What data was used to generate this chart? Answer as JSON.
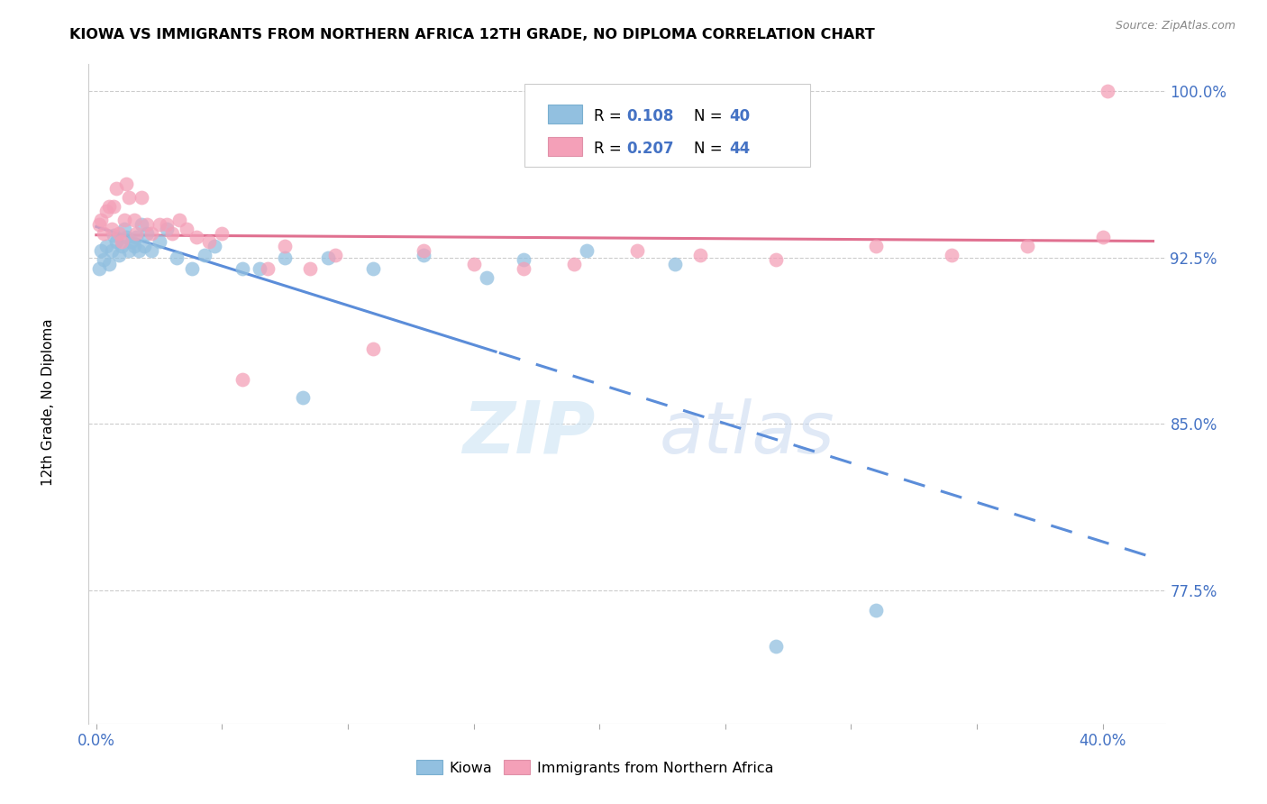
{
  "title": "KIOWA VS IMMIGRANTS FROM NORTHERN AFRICA 12TH GRADE, NO DIPLOMA CORRELATION CHART",
  "source": "Source: ZipAtlas.com",
  "ylabel": "12th Grade, No Diploma",
  "ymin": 0.715,
  "ymax": 1.012,
  "xmin": -0.003,
  "xmax": 0.425,
  "legend_r1": "R = 0.108",
  "legend_n1": "N = 40",
  "legend_r2": "R = 0.207",
  "legend_n2": "N = 44",
  "color_blue": "#92C0E0",
  "color_pink": "#F4A0B8",
  "color_blue_line": "#5B8DD9",
  "color_pink_line": "#E07090",
  "color_axis_label": "#4472C4",
  "kiowa_x": [
    0.001,
    0.002,
    0.003,
    0.004,
    0.005,
    0.006,
    0.007,
    0.008,
    0.009,
    0.01,
    0.011,
    0.012,
    0.013,
    0.014,
    0.015,
    0.016,
    0.017,
    0.018,
    0.019,
    0.02,
    0.022,
    0.025,
    0.028,
    0.032,
    0.038,
    0.043,
    0.047,
    0.058,
    0.065,
    0.075,
    0.082,
    0.092,
    0.11,
    0.13,
    0.155,
    0.17,
    0.195,
    0.23,
    0.27,
    0.31
  ],
  "kiowa_y": [
    0.92,
    0.928,
    0.924,
    0.93,
    0.922,
    0.928,
    0.935,
    0.932,
    0.926,
    0.93,
    0.938,
    0.934,
    0.928,
    0.932,
    0.93,
    0.934,
    0.928,
    0.94,
    0.93,
    0.936,
    0.928,
    0.932,
    0.938,
    0.925,
    0.92,
    0.926,
    0.93,
    0.92,
    0.92,
    0.925,
    0.862,
    0.925,
    0.92,
    0.926,
    0.916,
    0.924,
    0.928,
    0.922,
    0.75,
    0.766
  ],
  "nafr_x": [
    0.001,
    0.002,
    0.003,
    0.004,
    0.005,
    0.006,
    0.007,
    0.008,
    0.009,
    0.01,
    0.011,
    0.012,
    0.013,
    0.015,
    0.016,
    0.018,
    0.02,
    0.022,
    0.025,
    0.028,
    0.03,
    0.033,
    0.036,
    0.04,
    0.045,
    0.05,
    0.058,
    0.068,
    0.075,
    0.085,
    0.095,
    0.11,
    0.13,
    0.15,
    0.17,
    0.19,
    0.215,
    0.24,
    0.27,
    0.31,
    0.34,
    0.37,
    0.4,
    0.402
  ],
  "nafr_y": [
    0.94,
    0.942,
    0.936,
    0.946,
    0.948,
    0.938,
    0.948,
    0.956,
    0.936,
    0.932,
    0.942,
    0.958,
    0.952,
    0.942,
    0.936,
    0.952,
    0.94,
    0.936,
    0.94,
    0.94,
    0.936,
    0.942,
    0.938,
    0.934,
    0.932,
    0.936,
    0.87,
    0.92,
    0.93,
    0.92,
    0.926,
    0.884,
    0.928,
    0.922,
    0.92,
    0.922,
    0.928,
    0.926,
    0.924,
    0.93,
    0.926,
    0.93,
    0.934,
    1.0
  ]
}
